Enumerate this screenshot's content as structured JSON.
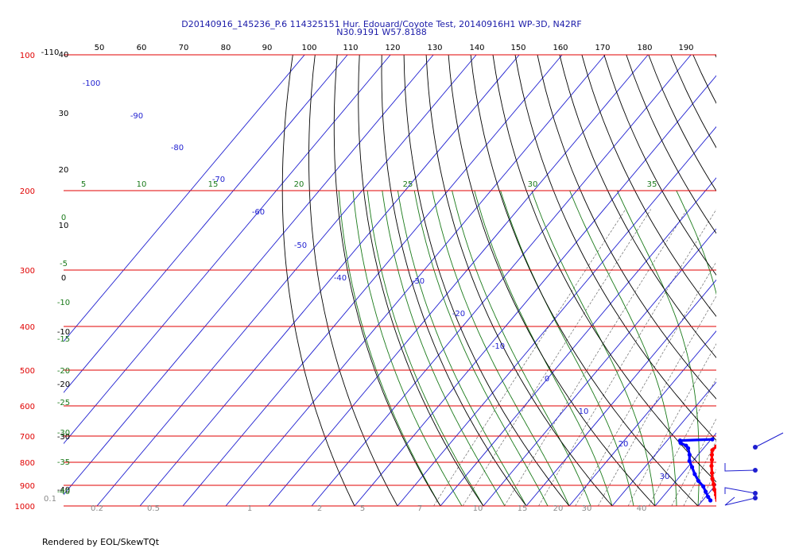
{
  "chart_data": {
    "type": "skew-t",
    "title": "D20140916_145236_P.6 114325151 Hur. Edouard/Coyote Test, 20140916H1 WP-3D, N42RF",
    "subtitle": "N30.9191 W57.8188",
    "footer": "Rendered by EOL/SkewTQt",
    "pressure_levels": [
      "100",
      "200",
      "300",
      "400",
      "500",
      "600",
      "700",
      "800",
      "900",
      "1000"
    ],
    "top_temperature_labels": [
      "50",
      "60",
      "70",
      "80",
      "90",
      "100",
      "110",
      "120",
      "130",
      "140",
      "150",
      "160",
      "170",
      "180",
      "190"
    ],
    "left_dry_adiabat_labels": [
      "40",
      "30",
      "20",
      "10",
      "0",
      "-10",
      "-20",
      "-30",
      "-40"
    ],
    "top_left_label": "-110",
    "isotherm_labels": [
      "-100",
      "-90",
      "-80",
      "-70",
      "-60",
      "-50",
      "-40",
      "-30",
      "-20",
      "-10",
      "0",
      "10",
      "20",
      "30"
    ],
    "moist_adiabat_labels": [
      "5",
      "10",
      "15",
      "20",
      "25",
      "30",
      "35"
    ],
    "left_green_labels": [
      "0",
      "-5",
      "-10",
      "-15",
      "-20",
      "-25",
      "-30",
      "-35",
      "-40"
    ],
    "mixing_ratio_labels": [
      "0.1",
      "0.2",
      "0.5",
      "1",
      "2",
      "5",
      "7",
      "10",
      "15",
      "20",
      "30",
      "40"
    ],
    "temperature_profile": [
      {
        "p": 710,
        "t": 16.5
      },
      {
        "p": 718,
        "t": 14.8
      },
      {
        "p": 725,
        "t": 13.6
      },
      {
        "p": 738,
        "t": 12.6
      },
      {
        "p": 752,
        "t": 12.4
      },
      {
        "p": 770,
        "t": 13.2
      },
      {
        "p": 790,
        "t": 14.2
      },
      {
        "p": 815,
        "t": 15.3
      },
      {
        "p": 845,
        "t": 16.8
      },
      {
        "p": 870,
        "t": 18.0
      },
      {
        "p": 895,
        "t": 19.4
      },
      {
        "p": 920,
        "t": 20.6
      },
      {
        "p": 945,
        "t": 22.0
      },
      {
        "p": 960,
        "t": 22.8
      },
      {
        "p": 972,
        "t": 23.4
      }
    ],
    "dewpoint_profile": [
      {
        "p": 712,
        "t": 10.3
      },
      {
        "p": 716,
        "t": 3.0
      },
      {
        "p": 725,
        "t": 3.6
      },
      {
        "p": 735,
        "t": 5.4
      },
      {
        "p": 745,
        "t": 6.4
      },
      {
        "p": 770,
        "t": 8.0
      },
      {
        "p": 795,
        "t": 9.2
      },
      {
        "p": 820,
        "t": 11.0
      },
      {
        "p": 850,
        "t": 13.0
      },
      {
        "p": 880,
        "t": 15.2
      },
      {
        "p": 905,
        "t": 17.4
      },
      {
        "p": 930,
        "t": 19.0
      },
      {
        "p": 955,
        "t": 20.6
      },
      {
        "p": 972,
        "t": 21.8
      }
    ],
    "series_colors": {
      "temperature": "#ff0000",
      "dewpoint": "#0000ff"
    },
    "line_colors": {
      "isobar": "#e00000",
      "isotherm": "#1f1fd0",
      "dry_adiabat": "#000000",
      "moist_adiabat": "#1a7a1a",
      "mixing_ratio": "#555555"
    }
  }
}
